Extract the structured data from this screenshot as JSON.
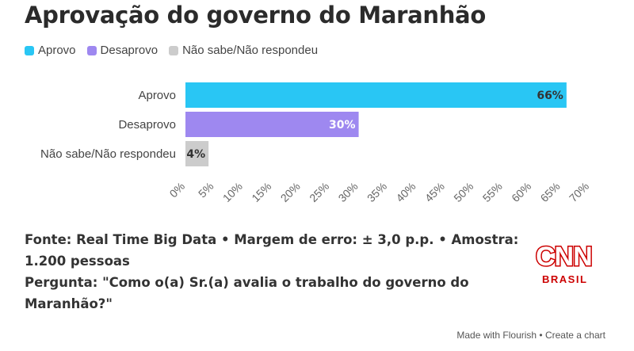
{
  "title": "Aprovação do governo do Maranhão",
  "legend": [
    {
      "label": "Aprovo",
      "color": "#29c6f4"
    },
    {
      "label": "Desaprovo",
      "color": "#9e88f0"
    },
    {
      "label": "Não sabe/Não respondeu",
      "color": "#cccccc"
    }
  ],
  "chart_data": {
    "type": "bar",
    "orientation": "horizontal",
    "categories": [
      "Aprovo",
      "Desaprovo",
      "Não sabe/Não respondeu"
    ],
    "values": [
      66,
      30,
      4
    ],
    "value_labels": [
      "66%",
      "30%",
      "4%"
    ],
    "label_colors": [
      "#333333",
      "#ffffff",
      "#333333"
    ],
    "colors": [
      "#29c6f4",
      "#9e88f0",
      "#cccccc"
    ],
    "xlim": [
      0,
      70
    ],
    "xticks": [
      "0%",
      "5%",
      "10%",
      "15%",
      "20%",
      "25%",
      "30%",
      "35%",
      "40%",
      "45%",
      "50%",
      "55%",
      "60%",
      "65%",
      "70%"
    ],
    "legend_position": "top-left",
    "grid": false
  },
  "footer": {
    "line1": "Fonte: Real Time Big Data • Margem de erro: ± 3,0 p.p. • Amostra:",
    "line2": "1.200 pessoas",
    "line3": "Pergunta: \"Como o(a) Sr.(a) avalia o trabalho do governo do",
    "line4": "Maranhão?\""
  },
  "logo": {
    "brand": "CNN",
    "sub": "BRASIL"
  },
  "credit": "Made with Flourish • Create a chart"
}
